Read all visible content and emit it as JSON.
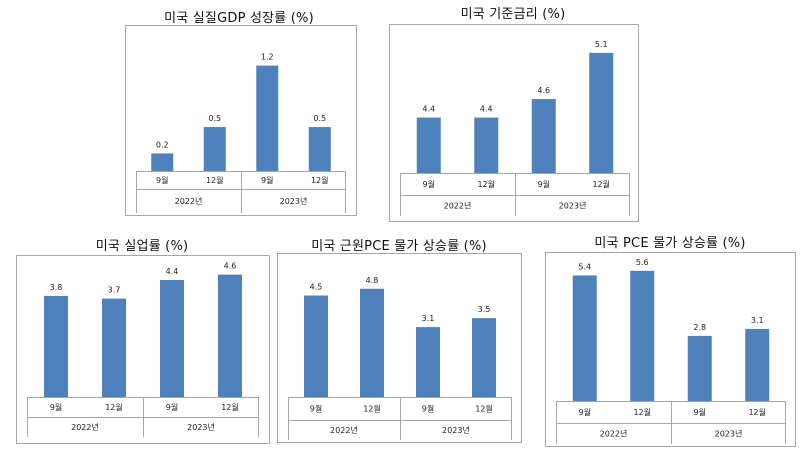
{
  "chart_data": [
    {
      "type": "bar",
      "title": "미국 실질GDP 성장률 (%)",
      "categories": [
        "9월",
        "12월",
        "9월",
        "12월"
      ],
      "groups": [
        {
          "label": "2022년",
          "size": 2
        },
        {
          "label": "2023년",
          "size": 2
        }
      ],
      "values": [
        0.2,
        0.5,
        1.2,
        0.5
      ],
      "value_labels": [
        "0.2",
        "0.5",
        "1.2",
        "0.5"
      ],
      "ylim": [
        0,
        1.4
      ],
      "color": "#4f81bd",
      "grid": false
    },
    {
      "type": "bar",
      "title": "미국 기준금리 (%)",
      "categories": [
        "9월",
        "12월",
        "9월",
        "12월"
      ],
      "groups": [
        {
          "label": "2022년",
          "size": 2
        },
        {
          "label": "2023년",
          "size": 2
        }
      ],
      "values": [
        4.4,
        4.4,
        4.6,
        5.1
      ],
      "value_labels": [
        "4.4",
        "4.4",
        "4.6",
        "5.1"
      ],
      "ylim": [
        3.8,
        5.25
      ],
      "color": "#4f81bd",
      "grid": false
    },
    {
      "type": "bar",
      "title": "미국 실업률 (%)",
      "categories": [
        "9월",
        "12월",
        "9월",
        "12월"
      ],
      "groups": [
        {
          "label": "2022년",
          "size": 2
        },
        {
          "label": "2023년",
          "size": 2
        }
      ],
      "values": [
        3.8,
        3.7,
        4.4,
        4.6
      ],
      "value_labels": [
        "3.8",
        "3.7",
        "4.4",
        "4.6"
      ],
      "ylim": [
        0,
        4.85
      ],
      "color": "#4f81bd",
      "grid": false
    },
    {
      "type": "bar",
      "title": "미국  근원PCE 물가 상승률 (%)",
      "categories": [
        "9월",
        "12월",
        "9월",
        "12월"
      ],
      "groups": [
        {
          "label": "2022년",
          "size": 2
        },
        {
          "label": "2023년",
          "size": 2
        }
      ],
      "values": [
        4.5,
        4.8,
        3.1,
        3.5
      ],
      "value_labels": [
        "4.5",
        "4.8",
        "3.1",
        "3.5"
      ],
      "ylim": [
        0,
        5.1
      ],
      "color": "#4f81bd",
      "grid": false
    },
    {
      "type": "bar",
      "title": "미국 PCE 물가 상승률 (%)",
      "categories": [
        "9월",
        "12월",
        "9월",
        "12월"
      ],
      "groups": [
        {
          "label": "2022년",
          "size": 2
        },
        {
          "label": "2023년",
          "size": 2
        }
      ],
      "values": [
        5.4,
        5.6,
        2.8,
        3.1
      ],
      "value_labels": [
        "5.4",
        "5.6",
        "2.8",
        "3.1"
      ],
      "ylim": [
        0,
        5.85
      ],
      "color": "#4f81bd",
      "grid": false
    }
  ]
}
